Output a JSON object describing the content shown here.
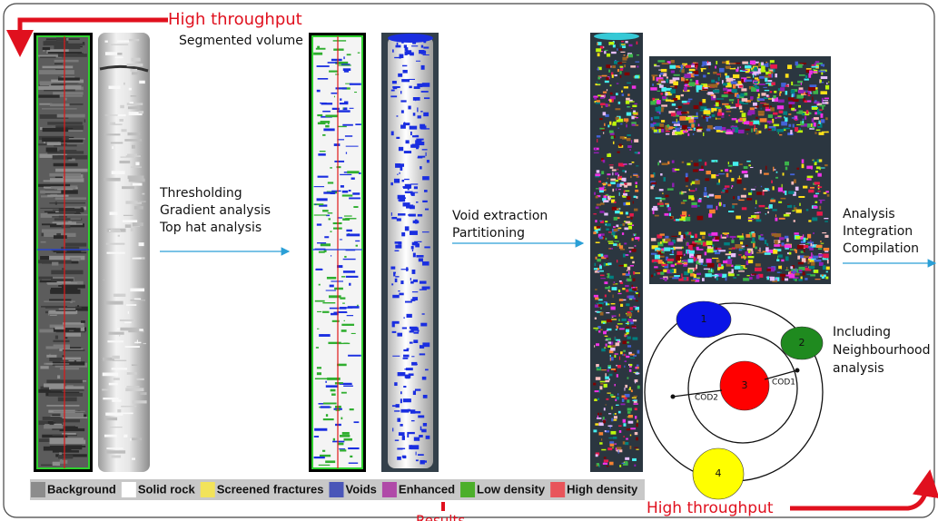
{
  "header": {
    "top_label": "High throughput",
    "segmented_label": "Segmented volume"
  },
  "steps": [
    {
      "lines": [
        "Thresholding",
        "Gradient analysis",
        "Top hat analysis"
      ]
    },
    {
      "lines": [
        "Void extraction",
        "Partitioning"
      ]
    },
    {
      "lines": [
        "Analysis",
        "Integration",
        "Compilation"
      ]
    }
  ],
  "neighbourhood": {
    "lines": [
      "Including",
      "Neighbourhood",
      "analysis"
    ],
    "nodes": [
      {
        "label": "1",
        "color": "#0a14e6"
      },
      {
        "label": "2",
        "color": "#1f8a1f"
      },
      {
        "label": "3",
        "color": "#ff0000"
      },
      {
        "label": "4",
        "color": "#ffff00"
      }
    ],
    "distances": [
      "COD1",
      "COD2"
    ]
  },
  "legend": [
    {
      "label": "Background",
      "color": "#8c8c8c"
    },
    {
      "label": "Solid rock",
      "color": "#ffffff"
    },
    {
      "label": "Screened fractures",
      "color": "#f2e35a"
    },
    {
      "label": "Voids",
      "color": "#4a56b8"
    },
    {
      "label": "Enhanced",
      "color": "#b04aa8"
    },
    {
      "label": "Low density",
      "color": "#4caf2a"
    },
    {
      "label": "High density",
      "color": "#e8545a"
    }
  ],
  "footer": {
    "bottom_label": "High throughput",
    "results": "Results"
  }
}
